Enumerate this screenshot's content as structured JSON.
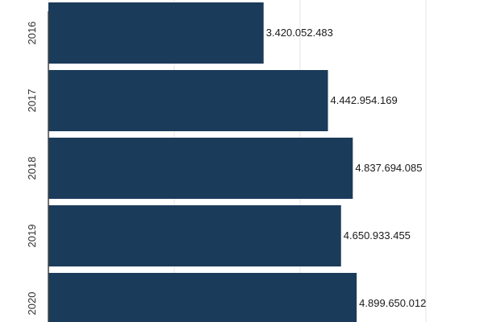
{
  "chart_data": {
    "type": "bar",
    "orientation": "horizontal",
    "categories": [
      "2016",
      "2017",
      "2018",
      "2019",
      "2020"
    ],
    "values": [
      3420052483,
      4442954169,
      4837694085,
      4650933455,
      4899650012
    ],
    "value_labels": [
      "3.420.052.483",
      "4.442.954.169",
      "4.837.694.085",
      "4.650.933.455",
      "4.899.650.012"
    ],
    "title": "",
    "xlabel": "",
    "ylabel": "",
    "grid": true,
    "bar_color": "#1b3b5a"
  }
}
